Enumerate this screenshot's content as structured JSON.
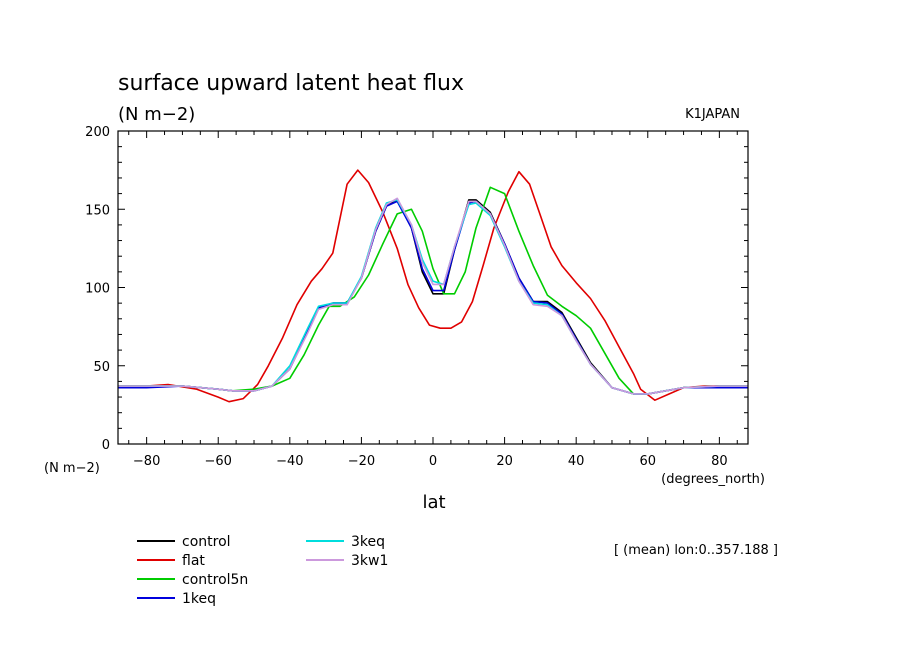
{
  "chart_data": {
    "type": "line",
    "title": "surface upward latent heat flux",
    "subtitle": "(N m−2)",
    "source_label": "K1JAPAN",
    "ylabel": "(N m−2)",
    "xlabel": "lat",
    "xunits": "(degrees_north)",
    "annotation": "[ (mean) lon:0..357.188 ]",
    "xlim": [
      -88,
      88
    ],
    "ylim": [
      0,
      200
    ],
    "xticks": [
      -80,
      -60,
      -40,
      -20,
      0,
      20,
      40,
      60,
      80
    ],
    "yticks": [
      0,
      50,
      100,
      150,
      200
    ],
    "grid": false,
    "legend_position": "bottom-left",
    "series": [
      {
        "name": "control",
        "color": "#000000",
        "x": [
          -88,
          -80,
          -70,
          -60,
          -56,
          -50,
          -45,
          -40,
          -35,
          -32,
          -28,
          -24,
          -20,
          -16,
          -13,
          -10,
          -6,
          -3,
          0,
          3,
          6,
          10,
          12,
          16,
          20,
          24,
          28,
          32,
          36,
          40,
          44,
          50,
          56,
          60,
          70,
          80,
          88
        ],
        "y": [
          37,
          37,
          37,
          35,
          34,
          34,
          37,
          48,
          72,
          87,
          90,
          90,
          106,
          136,
          152,
          156,
          138,
          110,
          96,
          96,
          124,
          156,
          156,
          148,
          128,
          106,
          91,
          91,
          84,
          68,
          52,
          36,
          32,
          32,
          36,
          37,
          37
        ]
      },
      {
        "name": "flat",
        "color": "#e00000",
        "x": [
          -88,
          -80,
          -74,
          -66,
          -60,
          -57,
          -53,
          -49,
          -46,
          -42,
          -38,
          -34,
          -31,
          -28,
          -24,
          -21,
          -18,
          -14,
          -10,
          -7,
          -4,
          -1,
          2,
          5,
          8,
          11,
          14,
          17,
          21,
          24,
          27,
          30,
          33,
          36,
          40,
          44,
          48,
          52,
          56,
          58,
          62,
          66,
          70,
          76,
          82,
          88
        ],
        "y": [
          37,
          37,
          38,
          35,
          30,
          27,
          29,
          38,
          50,
          68,
          89,
          104,
          112,
          122,
          166,
          175,
          167,
          148,
          125,
          102,
          87,
          76,
          74,
          74,
          78,
          91,
          114,
          138,
          161,
          174,
          166,
          146,
          126,
          114,
          103,
          93,
          79,
          62,
          45,
          35,
          28,
          32,
          36,
          37,
          37,
          37
        ]
      },
      {
        "name": "control5n",
        "color": "#00cc00",
        "x": [
          -88,
          -80,
          -70,
          -60,
          -56,
          -50,
          -45,
          -40,
          -36,
          -32,
          -29,
          -26,
          -22,
          -18,
          -14,
          -10,
          -6,
          -3,
          0,
          3,
          6,
          9,
          12,
          16,
          20,
          24,
          28,
          32,
          36,
          40,
          44,
          48,
          52,
          56,
          60,
          70,
          80,
          88
        ],
        "y": [
          37,
          37,
          37,
          35,
          34,
          35,
          37,
          42,
          57,
          76,
          88,
          88,
          94,
          108,
          128,
          147,
          150,
          136,
          112,
          96,
          96,
          110,
          138,
          164,
          160,
          136,
          114,
          95,
          88,
          82,
          74,
          58,
          42,
          32,
          32,
          36,
          37,
          37
        ]
      },
      {
        "name": "1keq",
        "color": "#0000dd",
        "x": [
          -88,
          -80,
          -70,
          -60,
          -56,
          -50,
          -45,
          -40,
          -35,
          -32,
          -28,
          -24,
          -20,
          -16,
          -13,
          -10,
          -6,
          -3,
          0,
          3,
          6,
          10,
          12,
          16,
          20,
          24,
          28,
          32,
          36,
          40,
          44,
          50,
          56,
          60,
          70,
          80,
          88
        ],
        "y": [
          36,
          36,
          37,
          35,
          34,
          34,
          37,
          48,
          72,
          87,
          90,
          90,
          106,
          136,
          152,
          155,
          138,
          112,
          98,
          98,
          124,
          154,
          155,
          147,
          128,
          106,
          91,
          90,
          83,
          67,
          51,
          36,
          32,
          32,
          36,
          36,
          36
        ]
      },
      {
        "name": "3keq",
        "color": "#00dddd",
        "x": [
          -88,
          -80,
          -70,
          -60,
          -56,
          -50,
          -45,
          -40,
          -35,
          -32,
          -28,
          -24,
          -20,
          -16,
          -13,
          -10,
          -6,
          -3,
          0,
          3,
          6,
          10,
          12,
          16,
          20,
          24,
          28,
          32,
          36,
          40,
          44,
          50,
          56,
          60,
          70,
          80,
          88
        ],
        "y": [
          37,
          37,
          37,
          35,
          34,
          34,
          37,
          50,
          74,
          88,
          90,
          90,
          107,
          138,
          154,
          156,
          140,
          118,
          104,
          102,
          126,
          153,
          154,
          146,
          126,
          104,
          90,
          89,
          82,
          66,
          51,
          36,
          32,
          32,
          36,
          37,
          37
        ]
      },
      {
        "name": "3kw1",
        "color": "#cc99dd",
        "x": [
          -88,
          -80,
          -70,
          -60,
          -56,
          -50,
          -45,
          -40,
          -35,
          -32,
          -28,
          -24,
          -20,
          -16,
          -13,
          -10,
          -6,
          -3,
          0,
          3,
          6,
          10,
          12,
          16,
          20,
          24,
          28,
          32,
          36,
          40,
          44,
          50,
          56,
          60,
          70,
          80,
          88
        ],
        "y": [
          37,
          37,
          37,
          35,
          34,
          34,
          37,
          48,
          71,
          86,
          89,
          89,
          106,
          137,
          153,
          157,
          140,
          116,
          102,
          102,
          126,
          155,
          155,
          147,
          127,
          104,
          89,
          88,
          82,
          66,
          51,
          36,
          32,
          32,
          36,
          37,
          37
        ]
      }
    ]
  }
}
